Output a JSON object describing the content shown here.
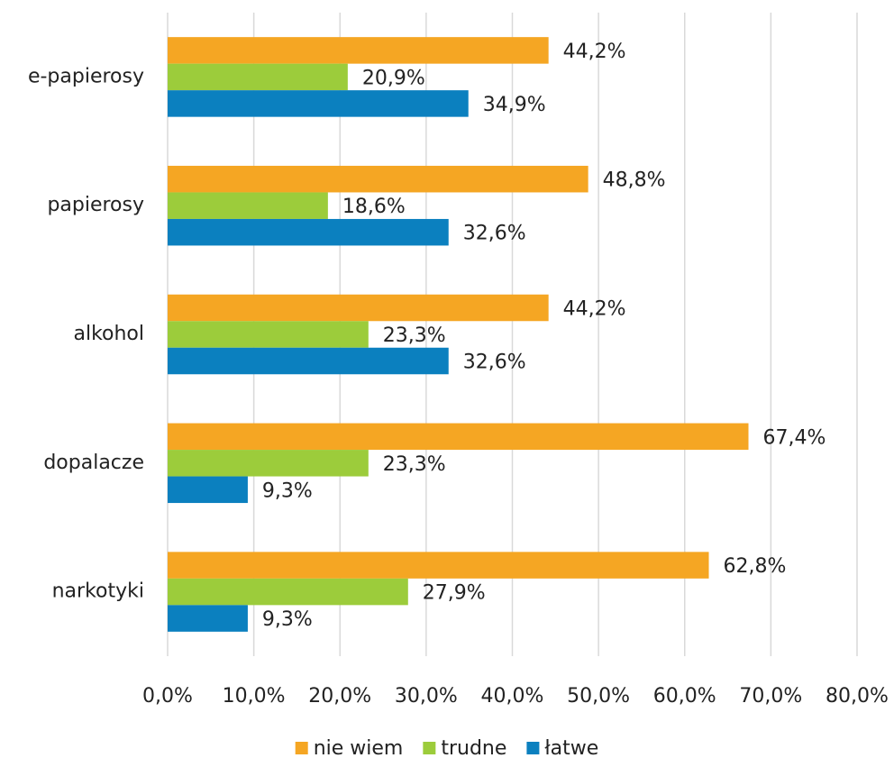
{
  "chart_data": {
    "type": "hbar",
    "categories": [
      "e-papierosy",
      "papierosy",
      "alkohol",
      "dopalacze",
      "narkotyki"
    ],
    "series": [
      {
        "name": "nie wiem",
        "color": "#f5a623",
        "values": [
          44.2,
          48.8,
          44.2,
          67.4,
          62.8
        ],
        "value_labels": [
          "44,2%",
          "48,8%",
          "44,2%",
          "67,4%",
          "62,8%"
        ]
      },
      {
        "name": "trudne",
        "color": "#9ccc3b",
        "values": [
          20.9,
          18.6,
          23.3,
          23.3,
          27.9
        ],
        "value_labels": [
          "20,9%",
          "18,6%",
          "23,3%",
          "23,3%",
          "27,9%"
        ]
      },
      {
        "name": "łatwe",
        "color": "#0b80bf",
        "values": [
          34.9,
          32.6,
          32.6,
          9.3,
          9.3
        ],
        "value_labels": [
          "34,9%",
          "32,6%",
          "32,6%",
          "9,3%",
          "9,3%"
        ]
      }
    ],
    "xlim": [
      0,
      80
    ],
    "xticks": [
      {
        "value": 0,
        "label": "0,0%"
      },
      {
        "value": 10,
        "label": "10,0%"
      },
      {
        "value": 20,
        "label": "20,0%"
      },
      {
        "value": 30,
        "label": "30,0%"
      },
      {
        "value": 40,
        "label": "40,0%"
      },
      {
        "value": 50,
        "label": "50,0%"
      },
      {
        "value": 60,
        "label": "60,0%"
      },
      {
        "value": 70,
        "label": "70,0%"
      },
      {
        "value": 80,
        "label": "80,0%"
      }
    ],
    "grid": true,
    "legend": "bottom"
  }
}
